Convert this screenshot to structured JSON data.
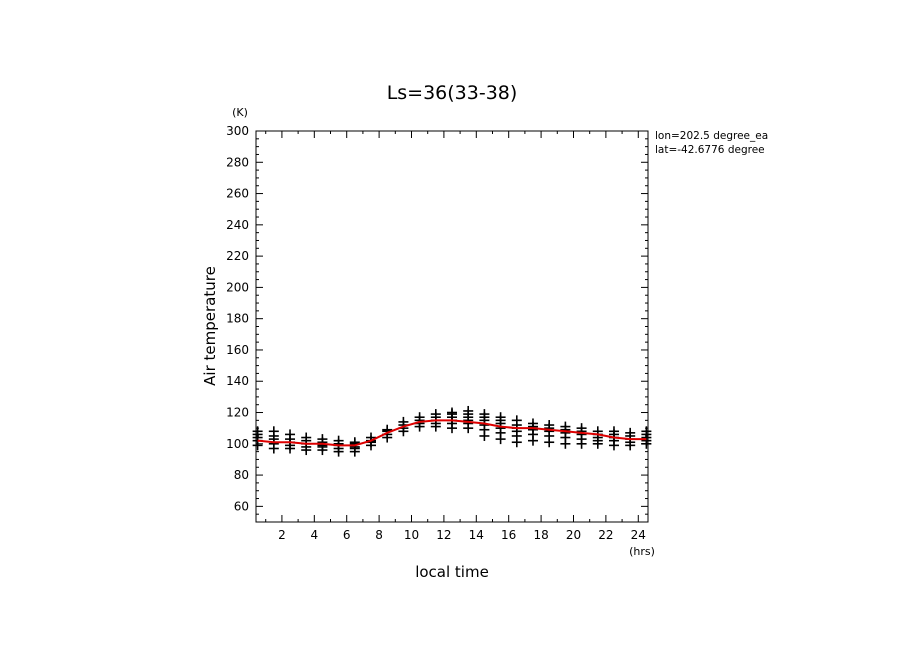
{
  "chart_data": {
    "type": "scatter",
    "title": "Ls=36(33-38)",
    "xlabel": "local time",
    "ylabel": "Air temperature",
    "x_unit": "(hrs)",
    "y_unit": "(K)",
    "xlim": [
      0.4,
      24.6
    ],
    "ylim": [
      50,
      300
    ],
    "x_ticks": [
      2,
      4,
      6,
      8,
      10,
      12,
      14,
      16,
      18,
      20,
      22,
      24
    ],
    "y_ticks": [
      60,
      80,
      100,
      120,
      140,
      160,
      180,
      200,
      220,
      240,
      260,
      280,
      300
    ],
    "annotations": [
      "lon=202.5 degree_ea",
      "lat=-42.6776 degree"
    ],
    "grid": false,
    "series": [
      {
        "style": "markers",
        "marker": "+",
        "color": "#000000",
        "x": [
          0.5,
          1.5,
          2.5,
          3.5,
          4.5,
          5.5,
          6.5,
          7.5,
          8.5,
          9.5,
          10.5,
          11.5,
          12.5,
          13.5,
          14.5,
          15.5,
          16.5,
          17.5,
          18.5,
          19.5,
          20.5,
          21.5,
          22.5,
          23.5,
          24.5
        ],
        "y_values": [
          [
            99,
            102,
            104,
            106,
            108
          ],
          [
            97,
            100,
            103,
            105,
            108
          ],
          [
            97,
            99,
            101,
            103,
            106
          ],
          [
            96,
            98,
            100,
            102,
            104
          ],
          [
            96,
            98,
            99,
            101,
            103
          ],
          [
            95,
            97,
            99,
            100,
            102
          ],
          [
            95,
            97,
            98,
            100,
            101
          ],
          [
            99,
            101,
            102,
            104
          ],
          [
            104,
            106,
            108,
            109
          ],
          [
            108,
            110,
            112,
            114
          ],
          [
            111,
            113,
            115,
            117
          ],
          [
            111,
            113,
            115,
            117,
            119
          ],
          [
            110,
            113,
            115,
            117,
            119,
            120
          ],
          [
            110,
            113,
            115,
            117,
            119,
            121
          ],
          [
            105,
            109,
            112,
            115,
            117,
            119
          ],
          [
            103,
            107,
            110,
            113,
            115,
            117
          ],
          [
            101,
            105,
            108,
            110,
            112,
            115
          ],
          [
            102,
            106,
            109,
            111,
            113
          ],
          [
            101,
            105,
            108,
            110,
            112
          ],
          [
            100,
            104,
            107,
            109,
            111
          ],
          [
            100,
            103,
            106,
            108,
            110
          ],
          [
            100,
            102,
            104,
            106,
            108
          ],
          [
            99,
            102,
            104,
            106,
            108
          ],
          [
            99,
            101,
            103,
            105,
            107
          ],
          [
            100,
            102,
            104,
            106,
            108
          ]
        ]
      },
      {
        "style": "line",
        "color": "#dd0000",
        "x": [
          0.5,
          1.5,
          2.5,
          3.5,
          4.5,
          5.5,
          6.5,
          7.5,
          8.5,
          9.5,
          10.5,
          11.5,
          12.5,
          13.5,
          14.5,
          15.5,
          16.5,
          17.5,
          18.5,
          19.5,
          20.5,
          21.5,
          22.5,
          23.5,
          24.5
        ],
        "y": [
          102,
          101,
          101,
          100,
          100,
          99,
          99,
          102,
          107,
          111,
          114,
          115,
          115,
          114,
          113,
          111,
          110,
          110,
          109,
          108,
          107,
          106,
          104,
          103,
          103
        ]
      }
    ]
  }
}
